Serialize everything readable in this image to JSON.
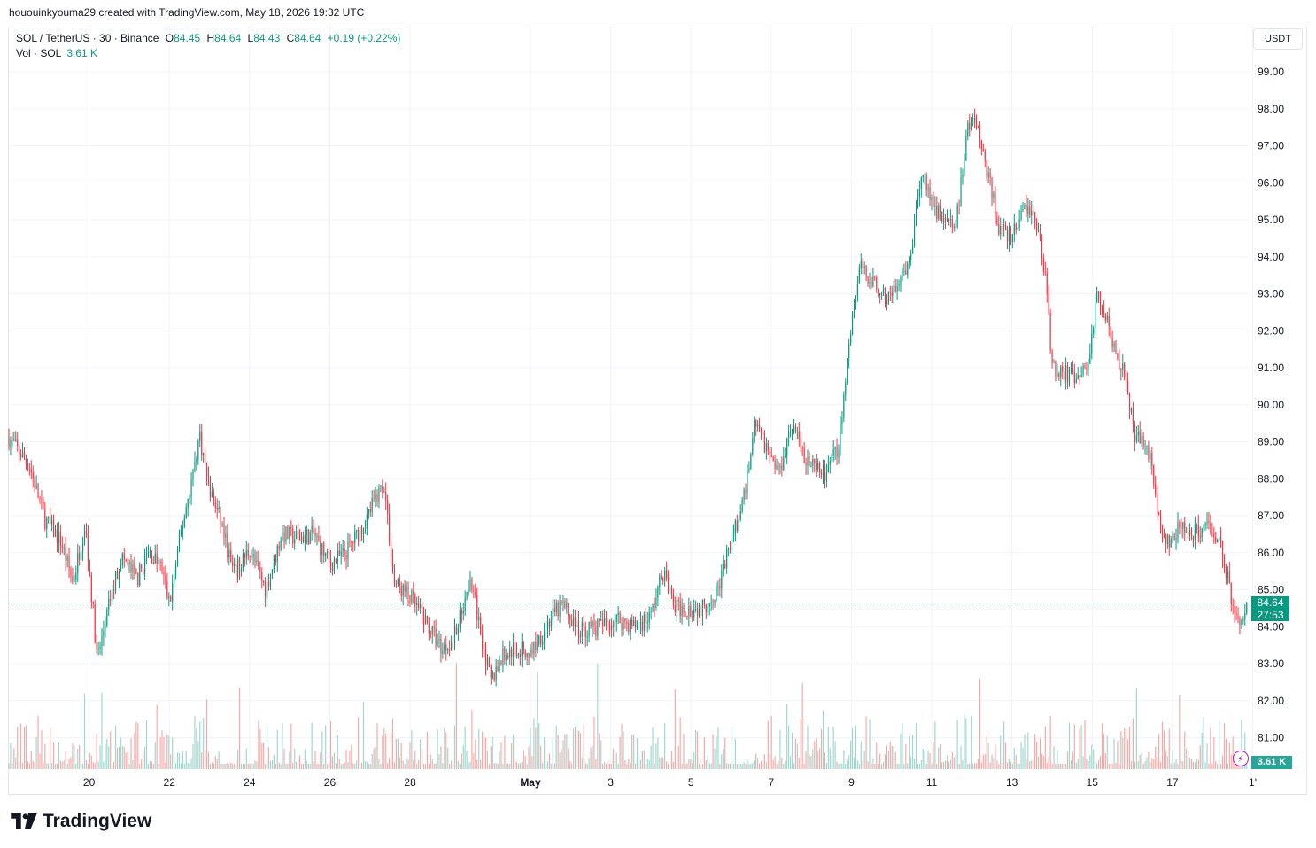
{
  "credit": "hououinkyouma29 created with TradingView.com, May 18, 2026 19:32 UTC",
  "legend": {
    "symbol": "SOL / TetherUS · 30 · Binance",
    "o_label": "O",
    "o_value": "84.45",
    "h_label": "H",
    "h_value": "84.64",
    "l_label": "L",
    "l_value": "84.43",
    "c_label": "C",
    "c_value": "84.64",
    "change": "+0.19 (+0.22%)",
    "vol_label": "Vol · SOL",
    "vol_value": "3.61 K"
  },
  "currency_button": "USDT",
  "last_price_tag": "84.64",
  "countdown_tag": "27:53",
  "volume_tag": "3.61 K",
  "logo_text": "TradingView",
  "icons": {
    "alert": "lightning-icon",
    "logo": "tradingview-logo-icon"
  },
  "colors": {
    "up": "#089981",
    "down": "#f23645",
    "up_vol": "#9fd6cf",
    "down_vol": "#f7a9a7",
    "grid": "#f0f3fa"
  },
  "chart_data": {
    "type": "candlestick",
    "interval": "30",
    "y_ticks": [
      "99.00",
      "98.00",
      "97.00",
      "96.00",
      "95.00",
      "94.00",
      "93.00",
      "92.00",
      "91.00",
      "90.00",
      "89.00",
      "88.00",
      "87.00",
      "86.00",
      "85.00",
      "84.00",
      "83.00",
      "82.00",
      "81.00"
    ],
    "ylim": [
      80.15,
      100.2
    ],
    "x_ticks": [
      {
        "label": "20",
        "day": 2
      },
      {
        "label": "22",
        "day": 4
      },
      {
        "label": "24",
        "day": 6
      },
      {
        "label": "26",
        "day": 8
      },
      {
        "label": "28",
        "day": 10
      },
      {
        "label": "May",
        "day": 13
      },
      {
        "label": "3",
        "day": 15
      },
      {
        "label": "5",
        "day": 17
      },
      {
        "label": "7",
        "day": 19
      },
      {
        "label": "9",
        "day": 21
      },
      {
        "label": "11",
        "day": 23
      },
      {
        "label": "13",
        "day": 25
      },
      {
        "label": "15",
        "day": 27
      },
      {
        "label": "17",
        "day": 29
      },
      {
        "label": "1'",
        "day": 31
      }
    ],
    "xlim": [
      0,
      30.9
    ],
    "price_path": [
      [
        0.0,
        89.1
      ],
      [
        0.5,
        88.4
      ],
      [
        0.9,
        86.9
      ],
      [
        1.3,
        86.3
      ],
      [
        1.6,
        85.2
      ],
      [
        1.9,
        86.8
      ],
      [
        2.1,
        84.4
      ],
      [
        2.2,
        83.1
      ],
      [
        2.5,
        84.6
      ],
      [
        2.8,
        85.9
      ],
      [
        3.2,
        85.3
      ],
      [
        3.5,
        86.0
      ],
      [
        3.8,
        85.6
      ],
      [
        4.0,
        84.6
      ],
      [
        4.3,
        86.6
      ],
      [
        4.6,
        88.2
      ],
      [
        4.75,
        89.2
      ],
      [
        5.0,
        87.7
      ],
      [
        5.3,
        86.8
      ],
      [
        5.6,
        85.4
      ],
      [
        6.0,
        86.1
      ],
      [
        6.4,
        85.0
      ],
      [
        6.8,
        86.5
      ],
      [
        7.2,
        86.4
      ],
      [
        7.6,
        86.5
      ],
      [
        8.0,
        85.7
      ],
      [
        8.4,
        86.0
      ],
      [
        8.8,
        86.7
      ],
      [
        9.2,
        87.6
      ],
      [
        9.35,
        87.9
      ],
      [
        9.6,
        85.2
      ],
      [
        10.0,
        84.8
      ],
      [
        10.4,
        84.1
      ],
      [
        10.8,
        83.4
      ],
      [
        11.1,
        83.7
      ],
      [
        11.5,
        85.4
      ],
      [
        11.7,
        84.2
      ],
      [
        12.0,
        82.5
      ],
      [
        12.3,
        83.2
      ],
      [
        12.6,
        83.4
      ],
      [
        13.0,
        83.3
      ],
      [
        13.5,
        84.2
      ],
      [
        13.8,
        84.6
      ],
      [
        14.2,
        83.9
      ],
      [
        14.7,
        84.0
      ],
      [
        15.2,
        84.2
      ],
      [
        15.6,
        84.0
      ],
      [
        16.0,
        84.3
      ],
      [
        16.3,
        85.5
      ],
      [
        16.6,
        84.5
      ],
      [
        16.9,
        84.5
      ],
      [
        17.3,
        84.5
      ],
      [
        17.7,
        85.1
      ],
      [
        18.0,
        86.3
      ],
      [
        18.3,
        87.3
      ],
      [
        18.6,
        89.6
      ],
      [
        18.9,
        88.8
      ],
      [
        19.2,
        88.2
      ],
      [
        19.5,
        89.5
      ],
      [
        19.8,
        88.7
      ],
      [
        20.1,
        88.2
      ],
      [
        20.4,
        88.1
      ],
      [
        20.7,
        89.0
      ],
      [
        20.95,
        91.8
      ],
      [
        21.2,
        93.7
      ],
      [
        21.5,
        93.4
      ],
      [
        21.8,
        92.9
      ],
      [
        22.1,
        93.1
      ],
      [
        22.4,
        93.6
      ],
      [
        22.6,
        95.0
      ],
      [
        22.8,
        96.4
      ],
      [
        23.0,
        95.4
      ],
      [
        23.3,
        95.1
      ],
      [
        23.6,
        94.8
      ],
      [
        23.9,
        97.5
      ],
      [
        24.1,
        97.7
      ],
      [
        24.4,
        96.2
      ],
      [
        24.7,
        94.7
      ],
      [
        25.0,
        94.5
      ],
      [
        25.3,
        95.4
      ],
      [
        25.6,
        95.0
      ],
      [
        25.85,
        93.4
      ],
      [
        26.0,
        91.0
      ],
      [
        26.3,
        90.9
      ],
      [
        26.6,
        90.6
      ],
      [
        26.9,
        91.1
      ],
      [
        27.1,
        92.9
      ],
      [
        27.3,
        92.6
      ],
      [
        27.6,
        91.4
      ],
      [
        27.85,
        90.8
      ],
      [
        28.05,
        89.0
      ],
      [
        28.3,
        89.1
      ],
      [
        28.5,
        88.3
      ],
      [
        28.7,
        86.5
      ],
      [
        28.9,
        86.2
      ],
      [
        29.2,
        86.7
      ],
      [
        29.5,
        86.4
      ],
      [
        29.8,
        86.8
      ],
      [
        30.1,
        86.5
      ],
      [
        30.3,
        85.8
      ],
      [
        30.45,
        84.8
      ],
      [
        30.65,
        84.1
      ],
      [
        30.85,
        84.64
      ]
    ],
    "last_price": 84.64
  }
}
